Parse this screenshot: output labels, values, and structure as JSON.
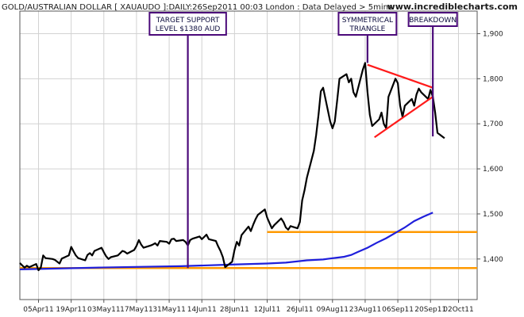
{
  "chart_title": "GOLD/AUSTRALIAN DOLLAR [ XAUAUDO ]:DAILY:26Sep2011 00:03 London : Data Delayed > 5mins",
  "site": "www.incrediblecharts.com",
  "chart_data": {
    "type": "line",
    "title": "GOLD/AUSTRALIAN DOLLAR [ XAUAUDO ]:DAILY:26Sep2011 00:03 London : Data Delayed > 5mins",
    "ylim": [
      1310,
      1950
    ],
    "y_ticks": [
      "1,400",
      "1,500",
      "1,600",
      "1,700",
      "1,800",
      "1,900"
    ],
    "y_tick_values": [
      1400,
      1500,
      1600,
      1700,
      1800,
      1900
    ],
    "x_ticks": [
      "05Apr11",
      "19Apr11",
      "03May11",
      "17May11",
      "31May11",
      "14Jun11",
      "28Jun11",
      "12Jul11",
      "26Jul11",
      "09Aug11",
      "23Aug11",
      "06Sep11",
      "20Sep11",
      "02Oct11"
    ],
    "x_start": "2011-03-28",
    "x_tick_dates": [
      "2011-04-05",
      "2011-04-19",
      "2011-05-03",
      "2011-05-17",
      "2011-05-31",
      "2011-06-14",
      "2011-06-28",
      "2011-07-12",
      "2011-07-26",
      "2011-08-09",
      "2011-08-23",
      "2011-09-06",
      "2011-09-20",
      "2011-10-02"
    ],
    "grid": true,
    "colors": {
      "price": "#000000",
      "moving_average": "#1f1fdb",
      "support": "#ff9900",
      "trendline": "#ff1a1a",
      "annotation": "#4b0a7a"
    },
    "series": [
      {
        "values": [
          1391,
          1386,
          1381,
          1385,
          1382,
          1389,
          1375,
          1381,
          1408,
          1402,
          1400,
          1398,
          1394,
          1390,
          1401,
          1408,
          1427,
          1417,
          1408,
          1402,
          1397,
          1409,
          1413,
          1408,
          1418,
          1425,
          1415,
          1406,
          1400,
          1404,
          1408,
          1413,
          1418,
          1416,
          1412,
          1420,
          1429,
          1442,
          1432,
          1425,
          1430,
          1432,
          1435,
          1430,
          1440,
          1438,
          1434,
          1444,
          1445,
          1440,
          1442,
          1438,
          1430,
          1442,
          1445,
          1450,
          1444,
          1449,
          1454,
          1444,
          1440,
          1428,
          1418,
          1404,
          1382,
          1394,
          1420,
          1438,
          1430,
          1453,
          1472,
          1462,
          1476,
          1488,
          1498,
          1510,
          1492,
          1480,
          1468,
          1475,
          1490,
          1482,
          1470,
          1465,
          1473,
          1468,
          1482,
          1530,
          1552,
          1580,
          1640,
          1675,
          1720,
          1772,
          1780,
          1705,
          1690,
          1705,
          1752,
          1800,
          1810,
          1792,
          1800,
          1770,
          1760,
          1820,
          1835,
          1770,
          1720,
          1695,
          1710,
          1725,
          1700,
          1690,
          1760,
          1800,
          1790,
          1740,
          1715,
          1740,
          1755,
          1740,
          1765,
          1778,
          1770,
          1755,
          1775,
          1760,
          1725,
          1680,
          1668
        ]
      },
      {
        "values": [
          1377,
          1381,
          1384,
          1388,
          1390,
          1392,
          1397,
          1399,
          1401,
          1403,
          1405,
          1409,
          1416,
          1425,
          1436,
          1446,
          1458,
          1470,
          1484,
          1494,
          1503
        ]
      }
    ],
    "ma_dates": [
      "2011-03-28",
      "2011-05-01",
      "2011-06-05",
      "2011-06-29",
      "2011-07-12",
      "2011-07-20",
      "2011-07-29",
      "2011-08-05",
      "2011-08-08",
      "2011-08-11",
      "2011-08-14",
      "2011-08-17",
      "2011-08-20",
      "2011-08-24",
      "2011-08-28",
      "2011-09-01",
      "2011-09-05",
      "2011-09-09",
      "2011-09-13",
      "2011-09-17",
      "2011-09-21"
    ],
    "support_levels": [
      {
        "value": 1380,
        "from": "2011-03-28",
        "to": "2011-10-10"
      },
      {
        "value": 1460,
        "from": "2011-07-12",
        "to": "2011-10-10"
      }
    ],
    "triangle": {
      "upper": {
        "from": {
          "date": "2011-08-24",
          "value": 1831
        },
        "to": {
          "date": "2011-09-21",
          "value": 1780
        }
      },
      "lower": {
        "from": {
          "date": "2011-08-27",
          "value": 1670
        },
        "to": {
          "date": "2011-09-21",
          "value": 1760
        }
      }
    },
    "annotations": [
      {
        "lines": [
          "TARGET SUPPORT",
          "LEVEL $1380 AUD"
        ],
        "date": "2011-06-08",
        "to_value": 1380
      },
      {
        "lines": [
          "SYMMETRICAL",
          "TRIANGLE"
        ],
        "date": "2011-08-24",
        "to_value": 1835
      },
      {
        "lines": [
          "BREAKDOWN"
        ],
        "date": "2011-09-21",
        "to_value": 1672
      }
    ]
  }
}
